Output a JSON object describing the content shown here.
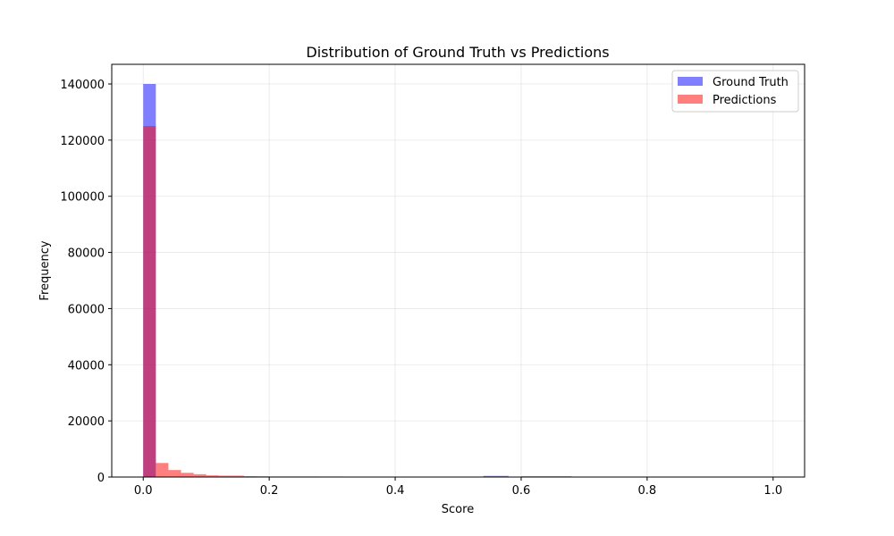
{
  "chart_data": {
    "type": "bar",
    "title": "Distribution of Ground Truth vs Predictions",
    "xlabel": "Score",
    "ylabel": "Frequency",
    "xlim": [
      -0.05,
      1.05
    ],
    "ylim": [
      0,
      147000
    ],
    "x_ticks": [
      0.0,
      0.2,
      0.4,
      0.6,
      0.8,
      1.0
    ],
    "x_tick_labels": [
      "0.0",
      "0.2",
      "0.4",
      "0.6",
      "0.8",
      "1.0"
    ],
    "y_ticks": [
      0,
      20000,
      40000,
      60000,
      80000,
      100000,
      120000,
      140000
    ],
    "y_tick_labels": [
      "0",
      "20000",
      "40000",
      "60000",
      "80000",
      "100000",
      "120000",
      "140000"
    ],
    "grid": true,
    "legend_position": "top-right",
    "bin_edges": [
      0.0,
      0.02,
      0.04,
      0.06,
      0.08,
      0.1,
      0.12,
      0.14,
      0.16,
      0.18,
      0.2,
      0.22,
      0.24,
      0.26,
      0.28,
      0.3,
      0.32,
      0.34,
      0.36,
      0.38,
      0.4,
      0.42,
      0.44,
      0.46,
      0.48,
      0.5,
      0.52,
      0.54,
      0.56,
      0.58,
      0.6,
      0.62,
      0.64,
      0.66,
      0.68,
      0.7,
      0.72,
      0.74,
      0.76,
      0.78,
      0.8,
      0.82,
      0.84,
      0.86,
      0.88,
      0.9,
      0.92,
      0.94,
      0.96,
      0.98,
      1.0
    ],
    "series": [
      {
        "name": "Ground Truth",
        "color": "#0000ff",
        "values": [
          140000,
          0,
          0,
          0,
          0,
          0,
          0,
          0,
          0,
          0,
          0,
          0,
          0,
          0,
          0,
          0,
          0,
          0,
          0,
          0,
          0,
          0,
          0,
          0,
          0,
          0,
          0,
          400,
          400,
          0,
          250,
          250,
          250,
          250,
          0,
          0,
          0,
          0,
          0,
          0,
          0,
          0,
          0,
          0,
          0,
          0,
          0,
          0,
          0,
          0
        ]
      },
      {
        "name": "Predictions",
        "color": "#ff0000",
        "values": [
          125000,
          5000,
          2500,
          1500,
          1000,
          600,
          500,
          500,
          300,
          250,
          200,
          200,
          200,
          200,
          180,
          180,
          160,
          160,
          150,
          150,
          150,
          140,
          140,
          140,
          130,
          130,
          130,
          120,
          120,
          120,
          120,
          120,
          110,
          110,
          110,
          110,
          110,
          110,
          110,
          110,
          110,
          110,
          110,
          110,
          110,
          110,
          110,
          110,
          110,
          110
        ]
      }
    ]
  }
}
